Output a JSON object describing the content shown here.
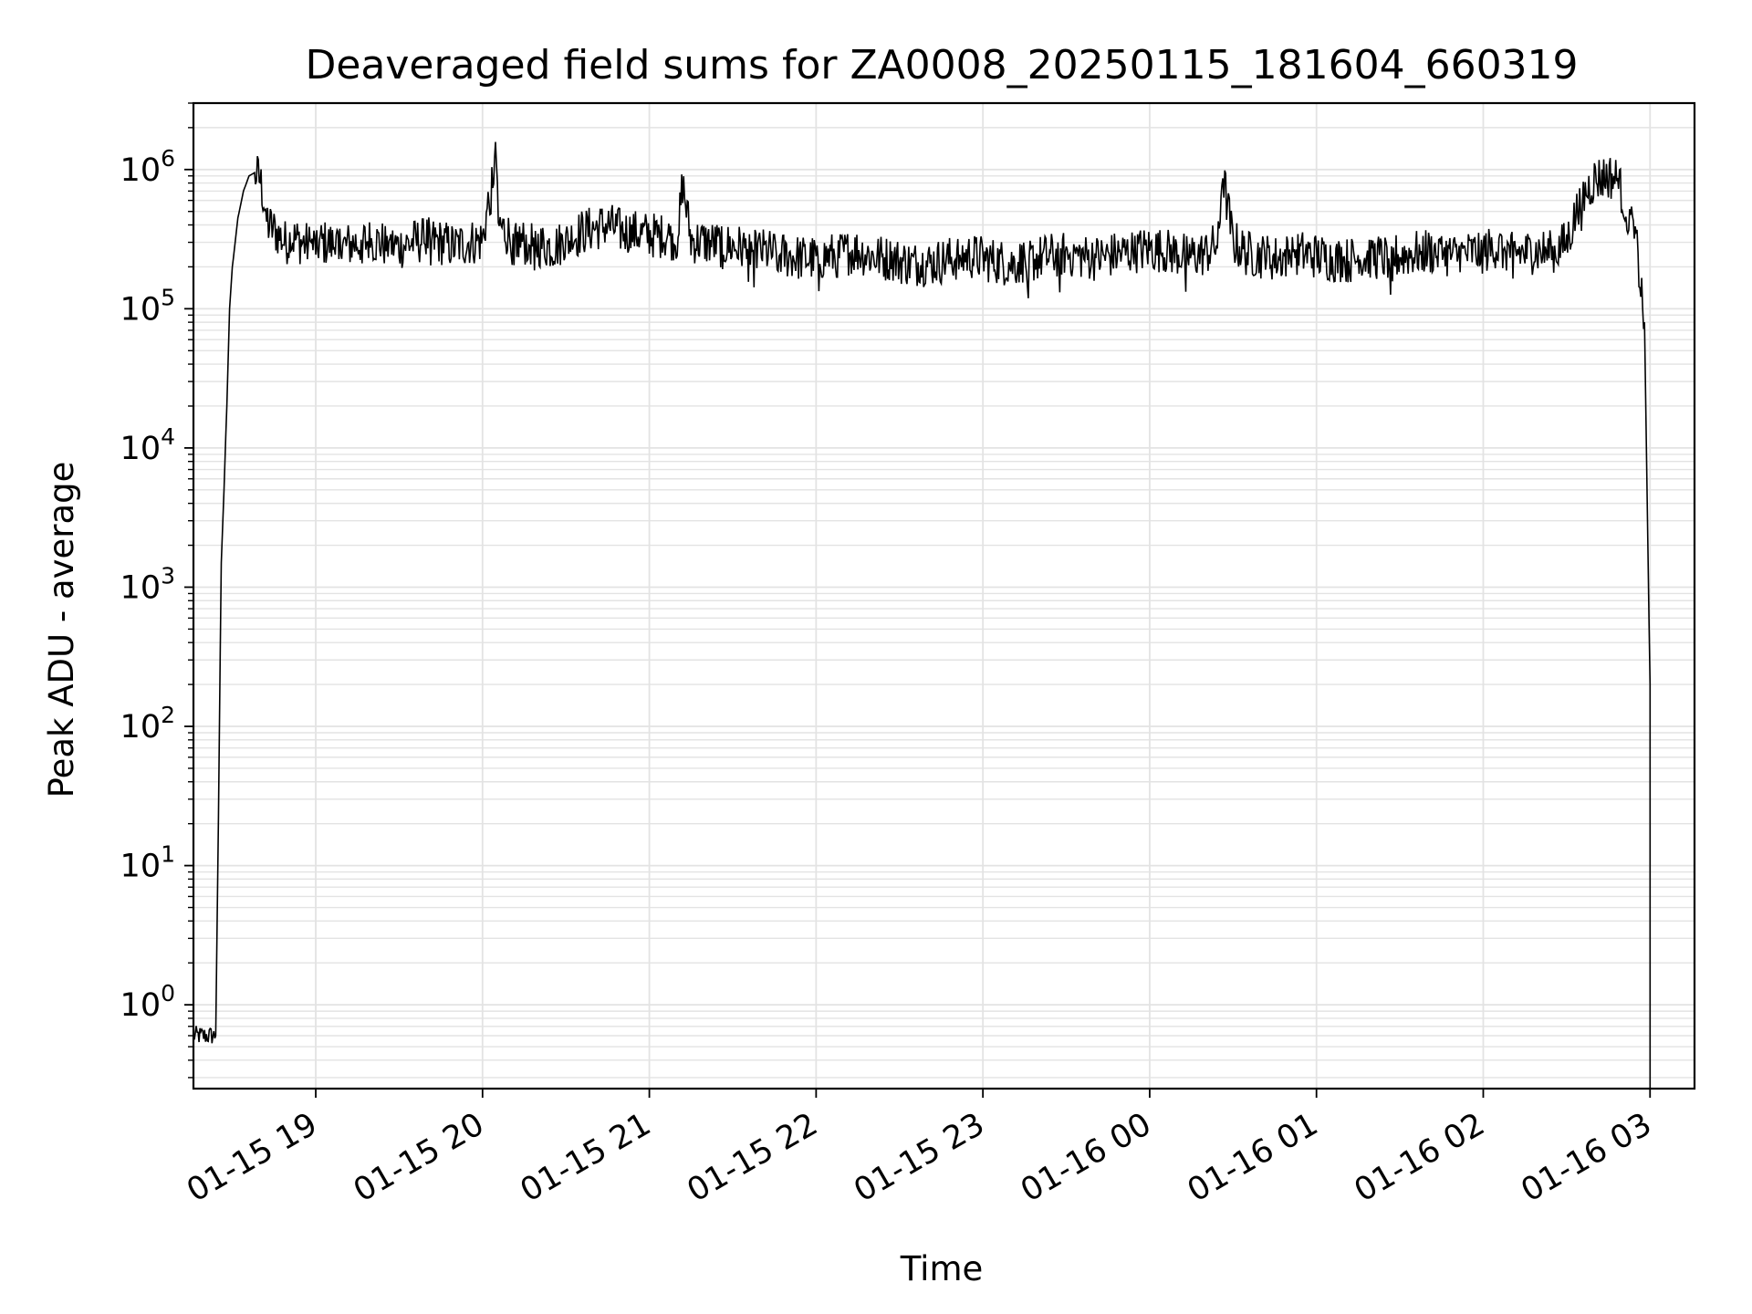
{
  "chart_data": {
    "type": "line",
    "title": "Deaveraged field sums for ZA0008_20250115_181604_660319",
    "xlabel": "Time",
    "ylabel": "Peak ADU - average",
    "yscale": "log",
    "xlim": [
      "01-15 18:16",
      "01-16 03:16"
    ],
    "ylim": [
      0.25,
      3000000
    ],
    "grid": true,
    "grid_minor": true,
    "line_color": "#000000",
    "grid_color": "#e3e3e3",
    "x_tick_labels": [
      "01-15 19",
      "01-15 20",
      "01-15 21",
      "01-15 22",
      "01-15 23",
      "01-16 00",
      "01-16 01",
      "01-16 02",
      "01-16 03"
    ],
    "x_tick_values": [
      "01-15 19:00",
      "01-15 20:00",
      "01-15 21:00",
      "01-15 22:00",
      "01-15 23:00",
      "01-16 00:00",
      "01-16 01:00",
      "01-16 02:00",
      "01-16 03:00"
    ],
    "y_tick_labels": [
      {
        "base": "10",
        "exp": "0"
      },
      {
        "base": "10",
        "exp": "1"
      },
      {
        "base": "10",
        "exp": "2"
      },
      {
        "base": "10",
        "exp": "3"
      },
      {
        "base": "10",
        "exp": "4"
      },
      {
        "base": "10",
        "exp": "5"
      },
      {
        "base": "10",
        "exp": "6"
      }
    ],
    "y_tick_values": [
      1,
      10,
      100,
      1000,
      10000,
      100000,
      1000000
    ],
    "series": [
      {
        "x": [
          "01-15 18:16",
          "01-15 18:24",
          "01-15 18:25",
          "01-15 18:26",
          "01-15 18:27",
          "01-15 18:28",
          "01-15 18:29",
          "01-15 18:30",
          "01-15 18:32",
          "01-15 18:34",
          "01-15 18:36",
          "01-15 18:38",
          "01-15 18:40",
          "01-15 18:43",
          "01-15 18:46",
          "01-15 18:49",
          "01-15 18:52",
          "01-15 18:55",
          "01-15 18:58",
          "01-15 19:02",
          "01-15 19:06",
          "01-15 19:10",
          "01-15 19:15",
          "01-15 19:20",
          "01-15 19:25",
          "01-15 19:30",
          "01-15 19:35",
          "01-15 19:40",
          "01-15 19:45",
          "01-15 19:50",
          "01-15 19:55",
          "01-15 20:00",
          "01-15 20:04",
          "01-15 20:05",
          "01-15 20:06",
          "01-15 20:10",
          "01-15 20:15",
          "01-15 20:20",
          "01-15 20:25",
          "01-15 20:30",
          "01-15 20:35",
          "01-15 20:40",
          "01-15 20:45",
          "01-15 20:50",
          "01-15 20:55",
          "01-15 21:00",
          "01-15 21:05",
          "01-15 21:10",
          "01-15 21:12",
          "01-15 21:15",
          "01-15 21:20",
          "01-15 21:25",
          "01-15 21:30",
          "01-15 21:35",
          "01-15 21:40",
          "01-15 21:45",
          "01-15 21:50",
          "01-15 21:55",
          "01-15 22:00",
          "01-15 22:05",
          "01-15 22:10",
          "01-15 22:15",
          "01-15 22:20",
          "01-15 22:25",
          "01-15 22:30",
          "01-15 22:35",
          "01-15 22:40",
          "01-15 22:45",
          "01-15 22:50",
          "01-15 22:55",
          "01-15 23:00",
          "01-15 23:05",
          "01-15 23:10",
          "01-15 23:15",
          "01-15 23:20",
          "01-15 23:25",
          "01-15 23:30",
          "01-15 23:35",
          "01-15 23:40",
          "01-15 23:45",
          "01-15 23:50",
          "01-15 23:55",
          "01-16 00:00",
          "01-16 00:05",
          "01-16 00:10",
          "01-16 00:15",
          "01-16 00:20",
          "01-16 00:25",
          "01-16 00:26",
          "01-16 00:30",
          "01-16 00:35",
          "01-16 00:40",
          "01-16 00:45",
          "01-16 00:50",
          "01-16 00:55",
          "01-16 01:00",
          "01-16 01:05",
          "01-16 01:10",
          "01-16 01:15",
          "01-16 01:20",
          "01-16 01:25",
          "01-16 01:30",
          "01-16 01:35",
          "01-16 01:40",
          "01-16 01:45",
          "01-16 01:50",
          "01-16 01:55",
          "01-16 02:00",
          "01-16 02:05",
          "01-16 02:10",
          "01-16 02:15",
          "01-16 02:20",
          "01-16 02:25",
          "01-16 02:30",
          "01-16 02:35",
          "01-16 02:40",
          "01-16 02:45",
          "01-16 02:48",
          "01-16 02:52",
          "01-16 02:55",
          "01-16 02:58",
          "01-16 03:00"
        ],
        "y": [
          0.6,
          0.6,
          22,
          1500,
          5000,
          20000,
          100000,
          200000,
          450000,
          700000,
          900000,
          950000,
          850000,
          400000,
          350000,
          300000,
          320000,
          300000,
          280000,
          300000,
          290000,
          280000,
          300000,
          310000,
          290000,
          280000,
          300000,
          320000,
          300000,
          280000,
          300000,
          310000,
          1000000,
          1200000,
          400000,
          330000,
          300000,
          290000,
          280000,
          300000,
          350000,
          380000,
          400000,
          360000,
          350000,
          340000,
          330000,
          320000,
          800000,
          310000,
          300000,
          290000,
          280000,
          270000,
          260000,
          250000,
          240000,
          230000,
          230000,
          240000,
          250000,
          260000,
          240000,
          230000,
          220000,
          210000,
          210000,
          220000,
          230000,
          240000,
          230000,
          220000,
          210000,
          220000,
          230000,
          240000,
          250000,
          240000,
          230000,
          240000,
          250000,
          260000,
          270000,
          260000,
          250000,
          240000,
          250000,
          300000,
          1000000,
          300000,
          250000,
          240000,
          230000,
          240000,
          250000,
          240000,
          230000,
          220000,
          230000,
          240000,
          230000,
          240000,
          250000,
          260000,
          250000,
          240000,
          250000,
          260000,
          270000,
          260000,
          250000,
          260000,
          250000,
          300000,
          600000,
          850000,
          900000,
          850000,
          500000,
          300000,
          80000,
          200
        ]
      }
    ]
  }
}
